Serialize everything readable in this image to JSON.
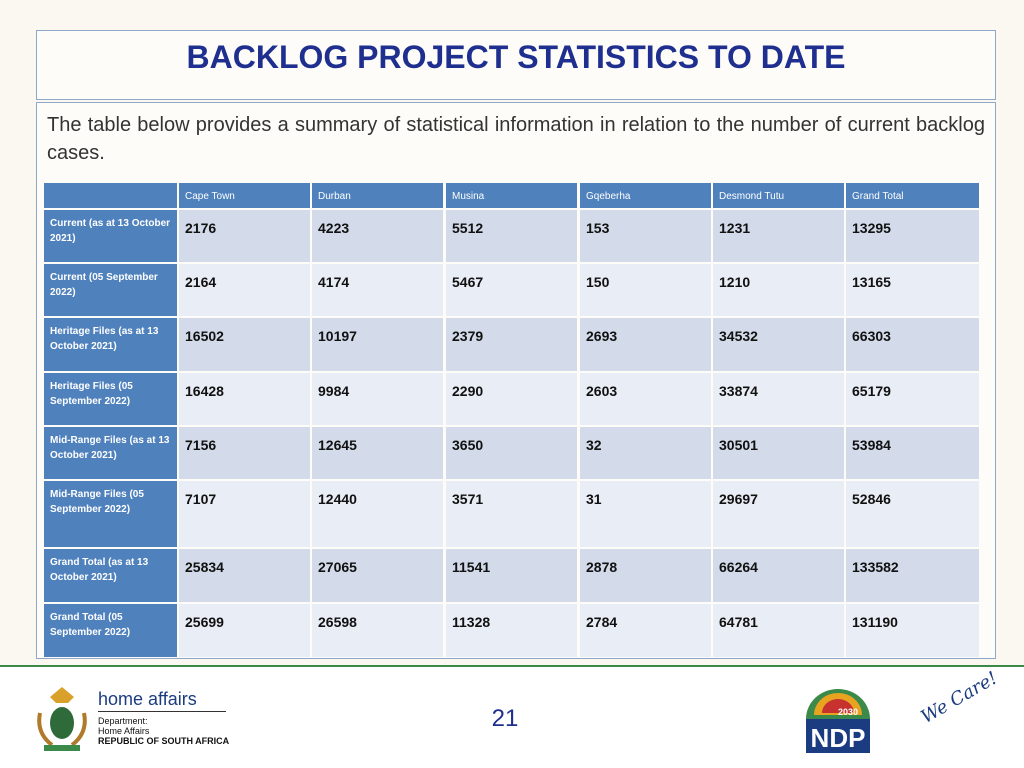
{
  "header": {
    "title": "BACKLOG PROJECT STATISTICS TO DATE"
  },
  "intro": "The table below provides a summary of statistical information in relation to the number of current backlog cases.",
  "table": {
    "columns": [
      "Cape Town",
      "Durban",
      "Musina",
      "Gqeberha",
      "Desmond Tutu",
      "Grand Total"
    ],
    "rows": [
      {
        "label": "Current (as at 13 October 2021)",
        "values": [
          2176,
          4223,
          5512,
          153,
          1231,
          13295
        ]
      },
      {
        "label": "Current (05 September 2022)",
        "values": [
          2164,
          4174,
          5467,
          150,
          1210,
          13165
        ]
      },
      {
        "label": "Heritage Files (as at 13 October 2021)",
        "values": [
          16502,
          10197,
          2379,
          2693,
          34532,
          66303
        ]
      },
      {
        "label": "Heritage Files (05 September 2022)",
        "values": [
          16428,
          9984,
          2290,
          2603,
          33874,
          65179
        ]
      },
      {
        "label": "Mid-Range Files (as at 13 October 2021)",
        "values": [
          7156,
          12645,
          3650,
          32,
          30501,
          53984
        ]
      },
      {
        "label": "Mid-Range Files (05 September 2022)",
        "values": [
          7107,
          12440,
          3571,
          31,
          29697,
          52846
        ]
      },
      {
        "label": "Grand Total (as at 13 October 2021)",
        "values": [
          25834,
          27065,
          11541,
          2878,
          66264,
          133582
        ]
      },
      {
        "label": "Grand Total (05 September 2022)",
        "values": [
          25699,
          26598,
          11328,
          2784,
          64781,
          131190
        ]
      }
    ]
  },
  "footer": {
    "brand": "home affairs",
    "dept_line1": "Department:",
    "dept_line2": "Home Affairs",
    "dept_line3": "REPUBLIC OF SOUTH AFRICA",
    "page_number": "21",
    "ndp_year": "2030",
    "ndp": "NDP",
    "slogan": "We Care!"
  }
}
